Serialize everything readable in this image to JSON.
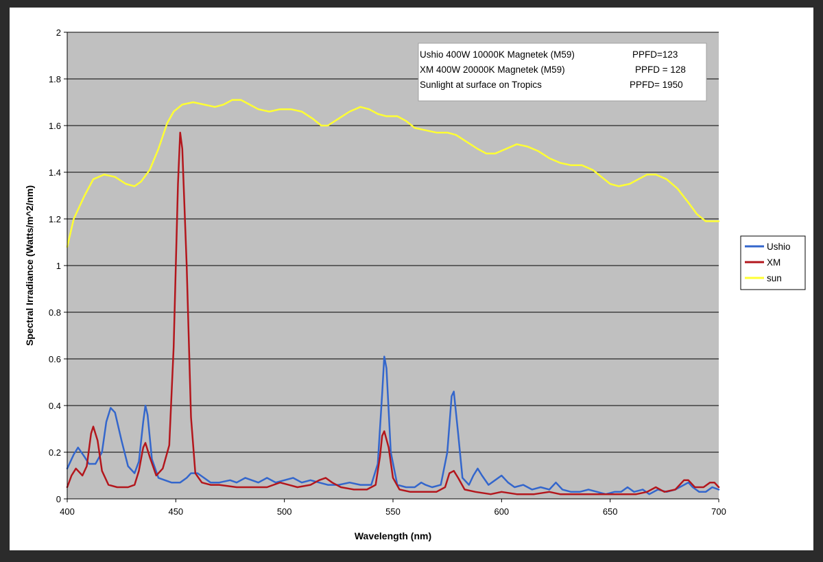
{
  "chart_data": {
    "type": "line",
    "title": "",
    "xlabel": "Wavelength (nm)",
    "ylabel": "Spectral Irradiance (Watts/m^2/nm)",
    "xlim": [
      400,
      700
    ],
    "ylim": [
      0,
      2
    ],
    "x_ticks": [
      400,
      450,
      500,
      550,
      600,
      650,
      700
    ],
    "y_ticks": [
      0,
      0.2,
      0.4,
      0.6,
      0.8,
      1,
      1.2,
      1.4,
      1.6,
      1.8,
      2
    ],
    "y_tick_labels": [
      "0",
      "0.2",
      "0.4",
      "0.6",
      "0.8",
      "1",
      "1.2",
      "1.4",
      "1.6",
      "1.8",
      "2"
    ],
    "grid": true,
    "plot_background": "#c0c0c0",
    "legend_position": "right",
    "annotation": [
      {
        "name": "Ushio 400W 10000K Magnetek (M59)",
        "ppfd": "PPFD=123"
      },
      {
        "name": "XM 400W 20000K Magnetek (M59)",
        "ppfd": "PPFD = 128"
      },
      {
        "name": "Sunlight at surface on Tropics",
        "ppfd": "PPFD= 1950"
      }
    ],
    "series": [
      {
        "name": "Ushio",
        "color": "#3366cc",
        "points": [
          [
            400,
            0.13
          ],
          [
            403,
            0.19
          ],
          [
            405,
            0.22
          ],
          [
            408,
            0.18
          ],
          [
            410,
            0.15
          ],
          [
            413,
            0.15
          ],
          [
            416,
            0.2
          ],
          [
            418,
            0.33
          ],
          [
            420,
            0.39
          ],
          [
            422,
            0.37
          ],
          [
            425,
            0.25
          ],
          [
            428,
            0.14
          ],
          [
            431,
            0.11
          ],
          [
            433,
            0.16
          ],
          [
            435,
            0.33
          ],
          [
            436,
            0.4
          ],
          [
            437,
            0.36
          ],
          [
            439,
            0.17
          ],
          [
            442,
            0.09
          ],
          [
            445,
            0.08
          ],
          [
            448,
            0.07
          ],
          [
            452,
            0.07
          ],
          [
            455,
            0.09
          ],
          [
            457,
            0.11
          ],
          [
            460,
            0.11
          ],
          [
            463,
            0.09
          ],
          [
            466,
            0.07
          ],
          [
            470,
            0.07
          ],
          [
            475,
            0.08
          ],
          [
            478,
            0.07
          ],
          [
            482,
            0.09
          ],
          [
            485,
            0.08
          ],
          [
            488,
            0.07
          ],
          [
            492,
            0.09
          ],
          [
            496,
            0.07
          ],
          [
            500,
            0.08
          ],
          [
            504,
            0.09
          ],
          [
            508,
            0.07
          ],
          [
            512,
            0.08
          ],
          [
            516,
            0.07
          ],
          [
            520,
            0.06
          ],
          [
            525,
            0.06
          ],
          [
            530,
            0.07
          ],
          [
            535,
            0.06
          ],
          [
            540,
            0.06
          ],
          [
            543,
            0.15
          ],
          [
            545,
            0.45
          ],
          [
            546,
            0.61
          ],
          [
            547,
            0.56
          ],
          [
            549,
            0.2
          ],
          [
            552,
            0.06
          ],
          [
            556,
            0.05
          ],
          [
            560,
            0.05
          ],
          [
            563,
            0.07
          ],
          [
            565,
            0.06
          ],
          [
            568,
            0.05
          ],
          [
            572,
            0.06
          ],
          [
            575,
            0.2
          ],
          [
            577,
            0.44
          ],
          [
            578,
            0.46
          ],
          [
            580,
            0.28
          ],
          [
            582,
            0.09
          ],
          [
            585,
            0.06
          ],
          [
            587,
            0.1
          ],
          [
            589,
            0.13
          ],
          [
            591,
            0.1
          ],
          [
            594,
            0.06
          ],
          [
            597,
            0.08
          ],
          [
            600,
            0.1
          ],
          [
            603,
            0.07
          ],
          [
            606,
            0.05
          ],
          [
            610,
            0.06
          ],
          [
            614,
            0.04
          ],
          [
            618,
            0.05
          ],
          [
            622,
            0.04
          ],
          [
            625,
            0.07
          ],
          [
            628,
            0.04
          ],
          [
            632,
            0.03
          ],
          [
            636,
            0.03
          ],
          [
            640,
            0.04
          ],
          [
            644,
            0.03
          ],
          [
            648,
            0.02
          ],
          [
            652,
            0.03
          ],
          [
            655,
            0.03
          ],
          [
            658,
            0.05
          ],
          [
            661,
            0.03
          ],
          [
            665,
            0.04
          ],
          [
            668,
            0.02
          ],
          [
            672,
            0.04
          ],
          [
            676,
            0.03
          ],
          [
            680,
            0.04
          ],
          [
            684,
            0.06
          ],
          [
            686,
            0.07
          ],
          [
            688,
            0.05
          ],
          [
            691,
            0.03
          ],
          [
            694,
            0.03
          ],
          [
            697,
            0.05
          ],
          [
            700,
            0.04
          ]
        ]
      },
      {
        "name": "XM",
        "color": "#b3161c",
        "points": [
          [
            400,
            0.05
          ],
          [
            402,
            0.1
          ],
          [
            404,
            0.13
          ],
          [
            407,
            0.1
          ],
          [
            409,
            0.14
          ],
          [
            411,
            0.28
          ],
          [
            412,
            0.31
          ],
          [
            414,
            0.25
          ],
          [
            416,
            0.12
          ],
          [
            419,
            0.06
          ],
          [
            423,
            0.05
          ],
          [
            428,
            0.05
          ],
          [
            431,
            0.06
          ],
          [
            433,
            0.12
          ],
          [
            435,
            0.22
          ],
          [
            436,
            0.24
          ],
          [
            438,
            0.18
          ],
          [
            441,
            0.1
          ],
          [
            444,
            0.13
          ],
          [
            447,
            0.23
          ],
          [
            449,
            0.65
          ],
          [
            451,
            1.35
          ],
          [
            452,
            1.57
          ],
          [
            453,
            1.5
          ],
          [
            455,
            1.0
          ],
          [
            457,
            0.35
          ],
          [
            459,
            0.11
          ],
          [
            462,
            0.07
          ],
          [
            466,
            0.06
          ],
          [
            470,
            0.06
          ],
          [
            478,
            0.05
          ],
          [
            485,
            0.05
          ],
          [
            492,
            0.05
          ],
          [
            498,
            0.07
          ],
          [
            502,
            0.06
          ],
          [
            506,
            0.05
          ],
          [
            512,
            0.06
          ],
          [
            516,
            0.08
          ],
          [
            519,
            0.09
          ],
          [
            522,
            0.07
          ],
          [
            526,
            0.05
          ],
          [
            532,
            0.04
          ],
          [
            538,
            0.04
          ],
          [
            542,
            0.06
          ],
          [
            544,
            0.18
          ],
          [
            545,
            0.27
          ],
          [
            546,
            0.29
          ],
          [
            548,
            0.22
          ],
          [
            550,
            0.09
          ],
          [
            553,
            0.04
          ],
          [
            558,
            0.03
          ],
          [
            565,
            0.03
          ],
          [
            570,
            0.03
          ],
          [
            574,
            0.05
          ],
          [
            576,
            0.11
          ],
          [
            578,
            0.12
          ],
          [
            580,
            0.09
          ],
          [
            583,
            0.04
          ],
          [
            588,
            0.03
          ],
          [
            595,
            0.02
          ],
          [
            600,
            0.03
          ],
          [
            607,
            0.02
          ],
          [
            615,
            0.02
          ],
          [
            622,
            0.03
          ],
          [
            627,
            0.02
          ],
          [
            635,
            0.02
          ],
          [
            645,
            0.02
          ],
          [
            655,
            0.02
          ],
          [
            662,
            0.02
          ],
          [
            667,
            0.03
          ],
          [
            671,
            0.05
          ],
          [
            675,
            0.03
          ],
          [
            680,
            0.04
          ],
          [
            684,
            0.08
          ],
          [
            686,
            0.08
          ],
          [
            689,
            0.05
          ],
          [
            693,
            0.05
          ],
          [
            696,
            0.07
          ],
          [
            698,
            0.07
          ],
          [
            700,
            0.05
          ]
        ]
      },
      {
        "name": "sun",
        "color": "#ffff33",
        "points": [
          [
            400,
            1.08
          ],
          [
            403,
            1.2
          ],
          [
            408,
            1.3
          ],
          [
            412,
            1.37
          ],
          [
            417,
            1.39
          ],
          [
            422,
            1.38
          ],
          [
            427,
            1.35
          ],
          [
            431,
            1.34
          ],
          [
            434,
            1.36
          ],
          [
            438,
            1.41
          ],
          [
            442,
            1.5
          ],
          [
            446,
            1.61
          ],
          [
            449,
            1.66
          ],
          [
            453,
            1.69
          ],
          [
            458,
            1.7
          ],
          [
            463,
            1.69
          ],
          [
            468,
            1.68
          ],
          [
            472,
            1.69
          ],
          [
            476,
            1.71
          ],
          [
            480,
            1.71
          ],
          [
            484,
            1.69
          ],
          [
            488,
            1.67
          ],
          [
            493,
            1.66
          ],
          [
            498,
            1.67
          ],
          [
            503,
            1.67
          ],
          [
            508,
            1.66
          ],
          [
            513,
            1.63
          ],
          [
            517,
            1.6
          ],
          [
            520,
            1.6
          ],
          [
            525,
            1.63
          ],
          [
            530,
            1.66
          ],
          [
            535,
            1.68
          ],
          [
            539,
            1.67
          ],
          [
            543,
            1.65
          ],
          [
            547,
            1.64
          ],
          [
            552,
            1.64
          ],
          [
            556,
            1.62
          ],
          [
            560,
            1.59
          ],
          [
            565,
            1.58
          ],
          [
            570,
            1.57
          ],
          [
            575,
            1.57
          ],
          [
            579,
            1.56
          ],
          [
            584,
            1.53
          ],
          [
            589,
            1.5
          ],
          [
            593,
            1.48
          ],
          [
            597,
            1.48
          ],
          [
            602,
            1.5
          ],
          [
            607,
            1.52
          ],
          [
            612,
            1.51
          ],
          [
            617,
            1.49
          ],
          [
            622,
            1.46
          ],
          [
            627,
            1.44
          ],
          [
            632,
            1.43
          ],
          [
            637,
            1.43
          ],
          [
            642,
            1.41
          ],
          [
            646,
            1.38
          ],
          [
            650,
            1.35
          ],
          [
            654,
            1.34
          ],
          [
            659,
            1.35
          ],
          [
            663,
            1.37
          ],
          [
            667,
            1.39
          ],
          [
            671,
            1.39
          ],
          [
            676,
            1.37
          ],
          [
            681,
            1.33
          ],
          [
            686,
            1.27
          ],
          [
            690,
            1.22
          ],
          [
            694,
            1.19
          ],
          [
            697,
            1.19
          ],
          [
            700,
            1.19
          ]
        ]
      }
    ]
  }
}
